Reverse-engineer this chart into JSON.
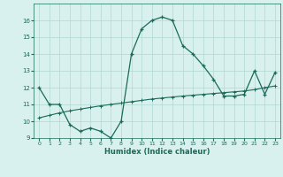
{
  "xlabel": "Humidex (Indice chaleur)",
  "line1_x": [
    0,
    1,
    2,
    3,
    4,
    5,
    6,
    7,
    8,
    9,
    10,
    11,
    12,
    13,
    14,
    15,
    16,
    17,
    18,
    19,
    20,
    21,
    22,
    23
  ],
  "line1_y": [
    12,
    11,
    11,
    9.8,
    9.4,
    9.6,
    9.4,
    9.0,
    10.0,
    14.0,
    15.5,
    16.0,
    16.2,
    16.0,
    14.5,
    14.0,
    13.3,
    12.5,
    11.5,
    11.5,
    11.6,
    13.0,
    11.6,
    12.9
  ],
  "line2_x": [
    0,
    1,
    2,
    3,
    4,
    5,
    6,
    7,
    8,
    9,
    10,
    11,
    12,
    13,
    14,
    15,
    16,
    17,
    18,
    19,
    20,
    21,
    22,
    23
  ],
  "line2_y": [
    10.2,
    10.35,
    10.5,
    10.62,
    10.72,
    10.82,
    10.92,
    11.0,
    11.08,
    11.16,
    11.24,
    11.32,
    11.38,
    11.44,
    11.5,
    11.55,
    11.6,
    11.65,
    11.7,
    11.75,
    11.8,
    11.88,
    12.0,
    12.1
  ],
  "line_color": "#1a6b5a",
  "bg_color": "#d8f0ee",
  "grid_color": "#b0d8d4",
  "ylim": [
    9,
    17
  ],
  "xlim": [
    -0.5,
    23.5
  ],
  "yticks": [
    9,
    10,
    11,
    12,
    13,
    14,
    15,
    16
  ],
  "xticks": [
    0,
    1,
    2,
    3,
    4,
    5,
    6,
    7,
    8,
    9,
    10,
    11,
    12,
    13,
    14,
    15,
    16,
    17,
    18,
    19,
    20,
    21,
    22,
    23
  ]
}
